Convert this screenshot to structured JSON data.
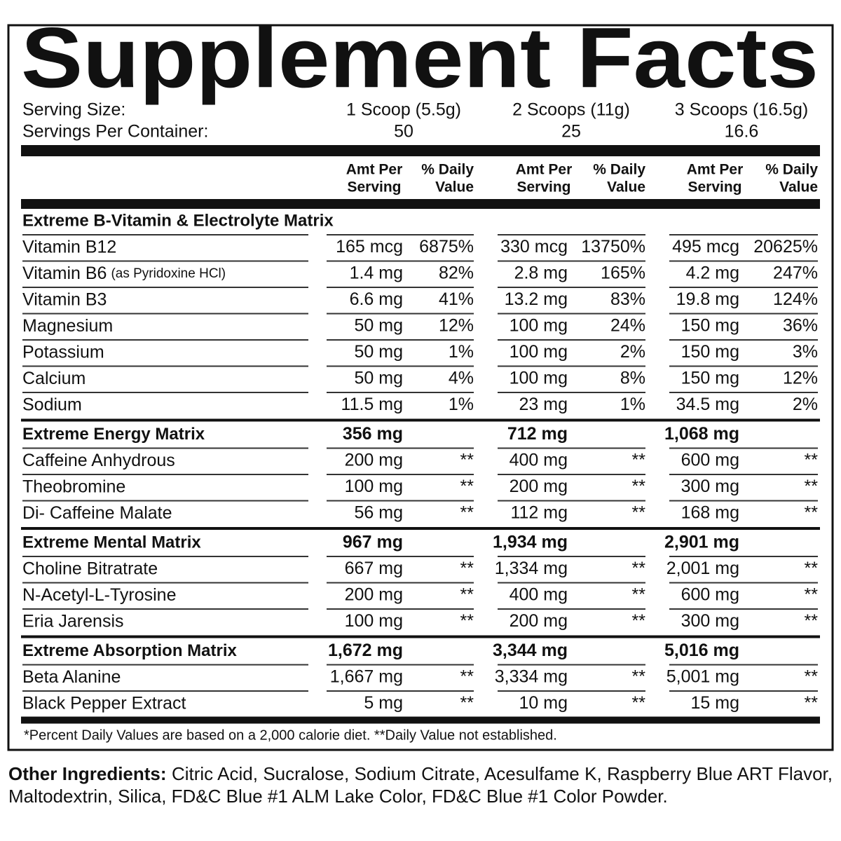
{
  "title": "Supplement Facts",
  "serving": {
    "size_label": "Serving Size:",
    "sizes": [
      "1 Scoop (5.5g)",
      "2 Scoops (11g)",
      "3 Scoops (16.5g)"
    ],
    "per_container_label": "Servings Per Container:",
    "per_container": [
      "50",
      "25",
      "16.6"
    ]
  },
  "column_headers": {
    "amount": [
      "Amt Per",
      "Serving"
    ],
    "daily_value": [
      "% Daily",
      "Value"
    ]
  },
  "sections": [
    {
      "name": "Extreme B-Vitamin & Electrolyte Matrix",
      "rows": [
        {
          "name": "Vitamin B12",
          "values": [
            [
              "165 mcg",
              "6875%"
            ],
            [
              "330 mcg",
              "13750%"
            ],
            [
              "495 mcg",
              "20625%"
            ]
          ]
        },
        {
          "name": "Vitamin B6",
          "note": "(as Pyridoxine HCl)",
          "values": [
            [
              "1.4 mg",
              "82%"
            ],
            [
              "2.8 mg",
              "165%"
            ],
            [
              "4.2 mg",
              "247%"
            ]
          ]
        },
        {
          "name": "Vitamin B3",
          "values": [
            [
              "6.6 mg",
              "41%"
            ],
            [
              "13.2 mg",
              "83%"
            ],
            [
              "19.8 mg",
              "124%"
            ]
          ]
        },
        {
          "name": "Magnesium",
          "values": [
            [
              "50 mg",
              "12%"
            ],
            [
              "100 mg",
              "24%"
            ],
            [
              "150 mg",
              "36%"
            ]
          ]
        },
        {
          "name": "Potassium",
          "values": [
            [
              "50 mg",
              "1%"
            ],
            [
              "100 mg",
              "2%"
            ],
            [
              "150 mg",
              "3%"
            ]
          ]
        },
        {
          "name": "Calcium",
          "values": [
            [
              "50 mg",
              "4%"
            ],
            [
              "100 mg",
              "8%"
            ],
            [
              "150 mg",
              "12%"
            ]
          ]
        },
        {
          "name": "Sodium",
          "values": [
            [
              "11.5 mg",
              "1%"
            ],
            [
              "23 mg",
              "1%"
            ],
            [
              "34.5 mg",
              "2%"
            ]
          ]
        }
      ]
    },
    {
      "name": "Extreme Energy Matrix",
      "amounts": [
        "356 mg",
        "712 mg",
        "1,068 mg"
      ],
      "rows": [
        {
          "name": "Caffeine Anhydrous",
          "values": [
            [
              "200 mg",
              "**"
            ],
            [
              "400 mg",
              "**"
            ],
            [
              "600 mg",
              "**"
            ]
          ]
        },
        {
          "name": "Theobromine",
          "values": [
            [
              "100 mg",
              "**"
            ],
            [
              "200 mg",
              "**"
            ],
            [
              "300 mg",
              "**"
            ]
          ]
        },
        {
          "name": "Di- Caffeine Malate",
          "values": [
            [
              "56 mg",
              "**"
            ],
            [
              "112 mg",
              "**"
            ],
            [
              "168 mg",
              "**"
            ]
          ]
        }
      ]
    },
    {
      "name": "Extreme Mental Matrix",
      "amounts": [
        "967 mg",
        "1,934 mg",
        "2,901 mg"
      ],
      "rows": [
        {
          "name": "Choline Bitratrate",
          "values": [
            [
              "667 mg",
              "**"
            ],
            [
              "1,334 mg",
              "**"
            ],
            [
              "2,001 mg",
              "**"
            ]
          ]
        },
        {
          "name": "N-Acetyl-L-Tyrosine",
          "values": [
            [
              "200 mg",
              "**"
            ],
            [
              "400 mg",
              "**"
            ],
            [
              "600 mg",
              "**"
            ]
          ]
        },
        {
          "name": "Eria Jarensis",
          "values": [
            [
              "100 mg",
              "**"
            ],
            [
              "200 mg",
              "**"
            ],
            [
              "300 mg",
              "**"
            ]
          ]
        }
      ]
    },
    {
      "name": "Extreme Absorption Matrix",
      "amounts": [
        "1,672 mg",
        "3,344 mg",
        "5,016 mg"
      ],
      "rows": [
        {
          "name": "Beta Alanine",
          "values": [
            [
              "1,667 mg",
              "**"
            ],
            [
              "3,334 mg",
              "**"
            ],
            [
              "5,001 mg",
              "**"
            ]
          ]
        },
        {
          "name": "Black Pepper Extract",
          "values": [
            [
              "5 mg",
              "**"
            ],
            [
              "10 mg",
              "**"
            ],
            [
              "15 mg",
              "**"
            ]
          ]
        }
      ]
    }
  ],
  "footnote": "*Percent Daily Values are based on a 2,000 calorie diet. **Daily Value not established.",
  "other_ingredients": {
    "label": "Other Ingredients:",
    "text": "Citric Acid, Sucralose, Sodium Citrate, Acesulfame K, Raspberry Blue ART Flavor, Maltodextrin, Silica, FD&C Blue #1 ALM Lake Color, FD&C Blue #1 Color Powder."
  }
}
